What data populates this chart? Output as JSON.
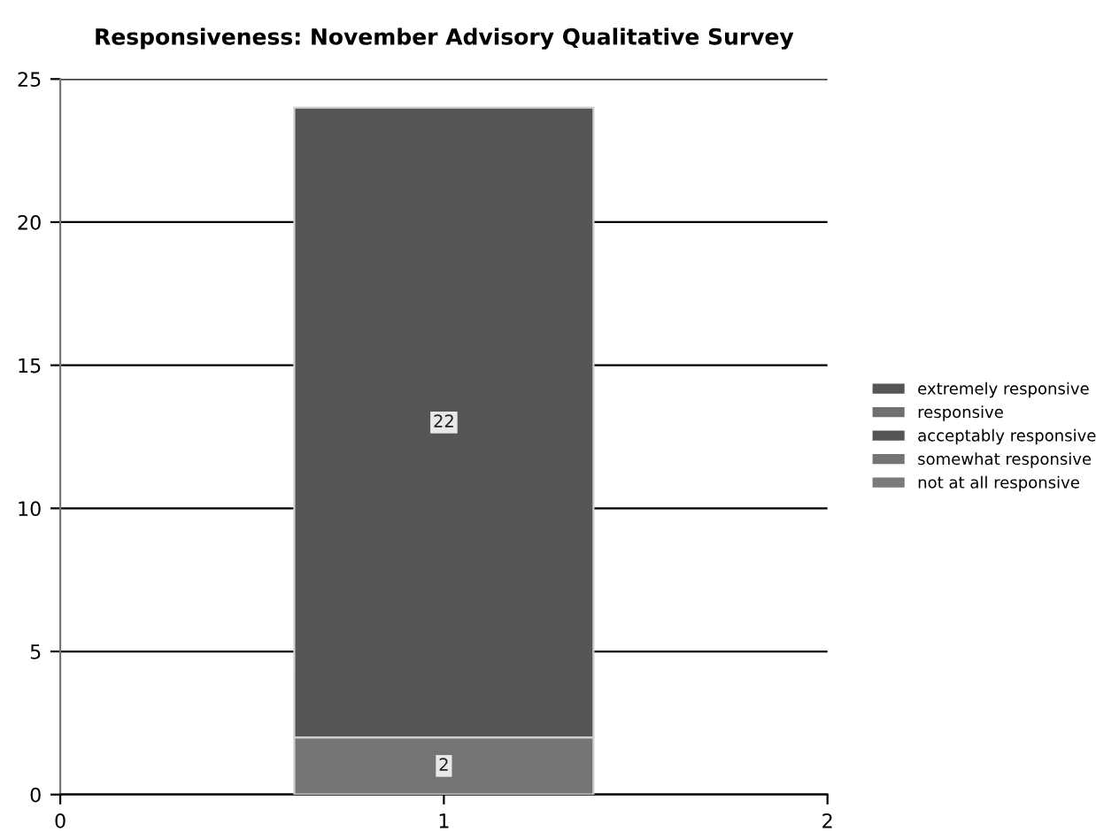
{
  "chart_data": {
    "type": "bar",
    "title": "Responsiveness: November Advisory Qualitative Survey",
    "stacked": true,
    "x": [
      1
    ],
    "xlim": [
      0,
      2
    ],
    "xticks": [
      0,
      1,
      2
    ],
    "ylim": [
      0,
      25
    ],
    "yticks": [
      0,
      5,
      10,
      15,
      20,
      25
    ],
    "grid": "y",
    "legend": "right",
    "series": [
      {
        "name": "not at all responsive",
        "color": "#7a7a7a",
        "values": [
          0
        ]
      },
      {
        "name": "somewhat responsive",
        "color": "#747474",
        "values": [
          2
        ],
        "value_labels": [
          "2"
        ]
      },
      {
        "name": "acceptably responsive",
        "color": "#555555",
        "values": [
          22
        ],
        "value_labels": [
          "22"
        ]
      },
      {
        "name": "responsive",
        "color": "#707070",
        "values": [
          0
        ]
      },
      {
        "name": "extremely responsive",
        "color": "#555555",
        "values": [
          0
        ]
      }
    ]
  }
}
